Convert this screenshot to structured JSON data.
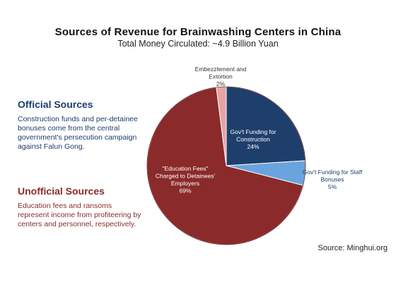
{
  "chart_data": {
    "type": "pie",
    "title": "Sources of Revenue for Brainwashing Centers in China",
    "subtitle": "Total Money Circulated: ~4.9 Billion Yuan",
    "slices": [
      {
        "label_lines": [
          "Gov't Funding for",
          "Construction",
          "24%"
        ],
        "value": 24,
        "color": "#1e3f6b"
      },
      {
        "label_lines": [
          "Gov't Funding for Staff",
          "Bonuses",
          "5%"
        ],
        "value": 5,
        "color": "#6aa4de"
      },
      {
        "label_lines": [
          "\"Education Fees\"",
          "Charged to Detainees'",
          "Employers",
          "69%"
        ],
        "value": 69,
        "color": "#8b2a2a"
      },
      {
        "label_lines": [
          "Embezzlement and",
          "Extortion",
          "2%"
        ],
        "value": 2,
        "color": "#e7a3a3"
      }
    ]
  },
  "sidebar": {
    "official_heading": "Official Sources",
    "official_text": "Construction funds and per-detainee bonuses come from the central government's persecution campaign against Falun Gong.",
    "unofficial_heading": "Unofficial Sources",
    "unofficial_text": "Education fees and ransoms represent income from profiteering by centers and personnel, respectively."
  },
  "source": "Source: Minghui.org"
}
